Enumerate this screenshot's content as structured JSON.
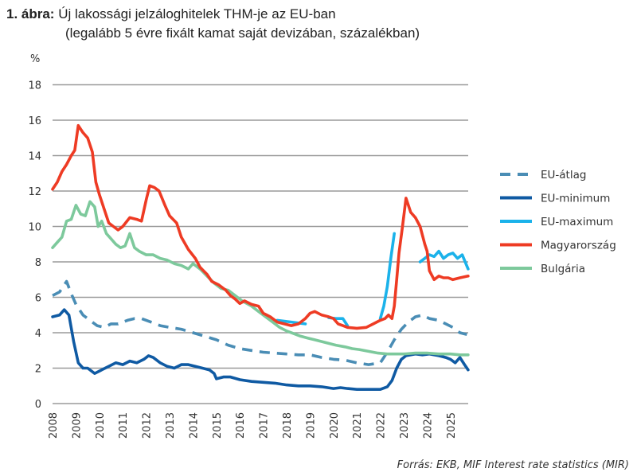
{
  "title": {
    "prefix": "1. ábra:",
    "line1": "Új lakossági jelzáloghitelek THM-je az EU-ban",
    "line2": "(legalább 5 évre fixált kamat saját devizában, százalékban)"
  },
  "source": "Forrás: EKB, MIF Interest rate statistics (MIR)",
  "chart_data": {
    "type": "line",
    "title": "Új lakossági jelzáloghitelek THM-je az EU-ban (legalább 5 évre fixált kamat saját devizában, százalékban)",
    "ylabel": "%",
    "xlabel": "",
    "ylim": [
      0,
      18
    ],
    "xlim": [
      2008,
      2025.75
    ],
    "yticks": [
      "0",
      "2",
      "4",
      "6",
      "8",
      "10",
      "12",
      "14",
      "16",
      "18"
    ],
    "xticks": [
      "2008",
      "2009",
      "2010",
      "2011",
      "2012",
      "2013",
      "2014",
      "2015",
      "2016",
      "2017",
      "2018",
      "2019",
      "2020",
      "2021",
      "2022",
      "2023",
      "2024",
      "2025"
    ],
    "grid": true,
    "legend_position": "right",
    "series": [
      {
        "name": "EU-átlag",
        "color": "#4A8DB5",
        "dash": true,
        "points": [
          [
            2008,
            6.1
          ],
          [
            2008.3,
            6.3
          ],
          [
            2008.6,
            6.9
          ],
          [
            2008.8,
            6.2
          ],
          [
            2009.0,
            5.6
          ],
          [
            2009.3,
            5.0
          ],
          [
            2009.6,
            4.7
          ],
          [
            2009.9,
            4.4
          ],
          [
            2010.2,
            4.3
          ],
          [
            2010.5,
            4.5
          ],
          [
            2010.8,
            4.5
          ],
          [
            2011.2,
            4.7
          ],
          [
            2011.5,
            4.8
          ],
          [
            2011.8,
            4.8
          ],
          [
            2012.2,
            4.6
          ],
          [
            2012.6,
            4.4
          ],
          [
            2013.0,
            4.3
          ],
          [
            2013.5,
            4.2
          ],
          [
            2014.0,
            4.0
          ],
          [
            2014.5,
            3.8
          ],
          [
            2015.0,
            3.6
          ],
          [
            2015.5,
            3.3
          ],
          [
            2016.0,
            3.1
          ],
          [
            2016.5,
            3.0
          ],
          [
            2017.0,
            2.9
          ],
          [
            2017.5,
            2.85
          ],
          [
            2018.0,
            2.8
          ],
          [
            2018.5,
            2.75
          ],
          [
            2019.0,
            2.75
          ],
          [
            2019.5,
            2.6
          ],
          [
            2020.0,
            2.5
          ],
          [
            2020.5,
            2.45
          ],
          [
            2021.0,
            2.3
          ],
          [
            2021.5,
            2.2
          ],
          [
            2022.0,
            2.3
          ],
          [
            2022.3,
            2.9
          ],
          [
            2022.6,
            3.6
          ],
          [
            2022.9,
            4.2
          ],
          [
            2023.2,
            4.6
          ],
          [
            2023.5,
            4.9
          ],
          [
            2023.8,
            5.0
          ],
          [
            2024.1,
            4.8
          ],
          [
            2024.5,
            4.7
          ],
          [
            2024.8,
            4.5
          ],
          [
            2025.1,
            4.3
          ],
          [
            2025.4,
            4.0
          ],
          [
            2025.7,
            3.9
          ]
        ]
      },
      {
        "name": "EU-minimum",
        "color": "#0F5AA3",
        "dash": false,
        "points": [
          [
            2008,
            4.9
          ],
          [
            2008.3,
            5.0
          ],
          [
            2008.5,
            5.3
          ],
          [
            2008.7,
            5.0
          ],
          [
            2008.9,
            3.5
          ],
          [
            2009.1,
            2.3
          ],
          [
            2009.3,
            2.0
          ],
          [
            2009.5,
            2.0
          ],
          [
            2009.8,
            1.7
          ],
          [
            2010.1,
            1.9
          ],
          [
            2010.4,
            2.1
          ],
          [
            2010.7,
            2.3
          ],
          [
            2011.0,
            2.2
          ],
          [
            2011.3,
            2.4
          ],
          [
            2011.6,
            2.3
          ],
          [
            2011.9,
            2.5
          ],
          [
            2012.1,
            2.7
          ],
          [
            2012.3,
            2.6
          ],
          [
            2012.6,
            2.3
          ],
          [
            2012.9,
            2.1
          ],
          [
            2013.2,
            2.0
          ],
          [
            2013.5,
            2.2
          ],
          [
            2013.8,
            2.2
          ],
          [
            2014.1,
            2.1
          ],
          [
            2014.4,
            2.0
          ],
          [
            2014.7,
            1.9
          ],
          [
            2014.9,
            1.7
          ],
          [
            2015.0,
            1.4
          ],
          [
            2015.3,
            1.5
          ],
          [
            2015.6,
            1.5
          ],
          [
            2016.0,
            1.35
          ],
          [
            2016.5,
            1.25
          ],
          [
            2017.0,
            1.2
          ],
          [
            2017.5,
            1.15
          ],
          [
            2018.0,
            1.05
          ],
          [
            2018.5,
            1.0
          ],
          [
            2019.0,
            1.0
          ],
          [
            2019.5,
            0.95
          ],
          [
            2020.0,
            0.85
          ],
          [
            2020.3,
            0.9
          ],
          [
            2020.6,
            0.85
          ],
          [
            2021.0,
            0.8
          ],
          [
            2021.5,
            0.8
          ],
          [
            2022.0,
            0.8
          ],
          [
            2022.3,
            0.95
          ],
          [
            2022.5,
            1.3
          ],
          [
            2022.7,
            2.0
          ],
          [
            2022.9,
            2.5
          ],
          [
            2023.1,
            2.7
          ],
          [
            2023.5,
            2.8
          ],
          [
            2023.8,
            2.75
          ],
          [
            2024.1,
            2.8
          ],
          [
            2024.5,
            2.7
          ],
          [
            2024.8,
            2.6
          ],
          [
            2025.0,
            2.5
          ],
          [
            2025.2,
            2.3
          ],
          [
            2025.4,
            2.6
          ],
          [
            2025.6,
            2.2
          ],
          [
            2025.75,
            1.9
          ]
        ]
      },
      {
        "name": "EU-maximum",
        "color": "#1BB2EA",
        "dash": false,
        "segments_note": "overlaps Magyarország except where shown",
        "points": [
          [
            2017.6,
            4.7
          ],
          [
            2017.9,
            4.65
          ],
          [
            2018.2,
            4.6
          ],
          [
            2018.5,
            4.55
          ],
          [
            2018.8,
            4.5
          ]
        ],
        "points2": [
          [
            2019.8,
            4.85
          ],
          [
            2020.1,
            4.8
          ],
          [
            2020.4,
            4.8
          ],
          [
            2020.6,
            4.4
          ]
        ],
        "points3": [
          [
            2022.0,
            4.8
          ],
          [
            2022.15,
            5.5
          ],
          [
            2022.3,
            6.6
          ],
          [
            2022.45,
            8.2
          ],
          [
            2022.6,
            9.6
          ]
        ],
        "points4": [
          [
            2023.7,
            8.0
          ],
          [
            2023.9,
            8.2
          ],
          [
            2024.1,
            8.4
          ],
          [
            2024.3,
            8.3
          ],
          [
            2024.5,
            8.6
          ],
          [
            2024.7,
            8.2
          ],
          [
            2024.9,
            8.4
          ],
          [
            2025.1,
            8.5
          ],
          [
            2025.3,
            8.2
          ],
          [
            2025.5,
            8.4
          ],
          [
            2025.75,
            7.6
          ]
        ]
      },
      {
        "name": "Magyarország",
        "color": "#EE3B24",
        "dash": false,
        "points": [
          [
            2008,
            12.1
          ],
          [
            2008.2,
            12.5
          ],
          [
            2008.4,
            13.1
          ],
          [
            2008.6,
            13.5
          ],
          [
            2008.8,
            14.0
          ],
          [
            2008.95,
            14.3
          ],
          [
            2009.1,
            15.7
          ],
          [
            2009.3,
            15.3
          ],
          [
            2009.5,
            15.0
          ],
          [
            2009.7,
            14.2
          ],
          [
            2009.85,
            12.5
          ],
          [
            2010.0,
            11.8
          ],
          [
            2010.2,
            11.0
          ],
          [
            2010.4,
            10.2
          ],
          [
            2010.6,
            10.0
          ],
          [
            2010.8,
            9.8
          ],
          [
            2011.0,
            10.0
          ],
          [
            2011.3,
            10.5
          ],
          [
            2011.6,
            10.4
          ],
          [
            2011.8,
            10.3
          ],
          [
            2012.0,
            11.5
          ],
          [
            2012.15,
            12.3
          ],
          [
            2012.35,
            12.2
          ],
          [
            2012.55,
            12.0
          ],
          [
            2012.8,
            11.2
          ],
          [
            2013.0,
            10.6
          ],
          [
            2013.3,
            10.2
          ],
          [
            2013.5,
            9.4
          ],
          [
            2013.8,
            8.7
          ],
          [
            2014.1,
            8.2
          ],
          [
            2014.3,
            7.7
          ],
          [
            2014.6,
            7.3
          ],
          [
            2014.8,
            6.9
          ],
          [
            2015.1,
            6.7
          ],
          [
            2015.4,
            6.4
          ],
          [
            2015.6,
            6.1
          ],
          [
            2015.8,
            5.9
          ],
          [
            2016.0,
            5.65
          ],
          [
            2016.2,
            5.8
          ],
          [
            2016.5,
            5.6
          ],
          [
            2016.8,
            5.5
          ],
          [
            2017.0,
            5.1
          ],
          [
            2017.3,
            4.9
          ],
          [
            2017.6,
            4.6
          ],
          [
            2017.9,
            4.5
          ],
          [
            2018.2,
            4.4
          ],
          [
            2018.5,
            4.5
          ],
          [
            2018.8,
            4.8
          ],
          [
            2019.0,
            5.1
          ],
          [
            2019.2,
            5.2
          ],
          [
            2019.5,
            5.0
          ],
          [
            2019.8,
            4.9
          ],
          [
            2020.0,
            4.8
          ],
          [
            2020.2,
            4.5
          ],
          [
            2020.4,
            4.4
          ],
          [
            2020.6,
            4.3
          ],
          [
            2021.0,
            4.25
          ],
          [
            2021.4,
            4.3
          ],
          [
            2021.7,
            4.5
          ],
          [
            2022.0,
            4.7
          ],
          [
            2022.2,
            4.8
          ],
          [
            2022.35,
            5.0
          ],
          [
            2022.5,
            4.8
          ],
          [
            2022.6,
            5.5
          ],
          [
            2022.7,
            7.0
          ],
          [
            2022.8,
            8.5
          ],
          [
            2022.95,
            10.0
          ],
          [
            2023.1,
            11.6
          ],
          [
            2023.3,
            10.8
          ],
          [
            2023.5,
            10.5
          ],
          [
            2023.7,
            10.0
          ],
          [
            2023.9,
            9.0
          ],
          [
            2024.0,
            8.6
          ],
          [
            2024.1,
            7.5
          ],
          [
            2024.3,
            7.0
          ],
          [
            2024.5,
            7.2
          ],
          [
            2024.7,
            7.1
          ],
          [
            2024.9,
            7.1
          ],
          [
            2025.1,
            7.0
          ],
          [
            2025.4,
            7.1
          ],
          [
            2025.75,
            7.2
          ]
        ]
      },
      {
        "name": "Bulgária",
        "color": "#7DC99C",
        "dash": false,
        "points": [
          [
            2008,
            8.8
          ],
          [
            2008.2,
            9.1
          ],
          [
            2008.4,
            9.4
          ],
          [
            2008.6,
            10.3
          ],
          [
            2008.8,
            10.4
          ],
          [
            2009.0,
            11.2
          ],
          [
            2009.2,
            10.7
          ],
          [
            2009.4,
            10.6
          ],
          [
            2009.6,
            11.4
          ],
          [
            2009.8,
            11.1
          ],
          [
            2009.95,
            10.0
          ],
          [
            2010.1,
            10.3
          ],
          [
            2010.3,
            9.6
          ],
          [
            2010.5,
            9.3
          ],
          [
            2010.7,
            9.0
          ],
          [
            2010.9,
            8.8
          ],
          [
            2011.1,
            8.9
          ],
          [
            2011.3,
            9.6
          ],
          [
            2011.5,
            8.8
          ],
          [
            2011.7,
            8.6
          ],
          [
            2012.0,
            8.4
          ],
          [
            2012.3,
            8.4
          ],
          [
            2012.6,
            8.2
          ],
          [
            2012.9,
            8.1
          ],
          [
            2013.2,
            7.9
          ],
          [
            2013.5,
            7.8
          ],
          [
            2013.8,
            7.6
          ],
          [
            2014.0,
            7.9
          ],
          [
            2014.3,
            7.6
          ],
          [
            2014.6,
            7.2
          ],
          [
            2014.9,
            6.8
          ],
          [
            2015.2,
            6.5
          ],
          [
            2015.5,
            6.4
          ],
          [
            2015.8,
            6.1
          ],
          [
            2016.1,
            5.8
          ],
          [
            2016.5,
            5.5
          ],
          [
            2016.8,
            5.2
          ],
          [
            2017.1,
            4.9
          ],
          [
            2017.4,
            4.6
          ],
          [
            2017.7,
            4.3
          ],
          [
            2018.0,
            4.1
          ],
          [
            2018.3,
            3.95
          ],
          [
            2018.6,
            3.8
          ],
          [
            2018.9,
            3.7
          ],
          [
            2019.2,
            3.6
          ],
          [
            2019.5,
            3.5
          ],
          [
            2019.8,
            3.4
          ],
          [
            2020.1,
            3.3
          ],
          [
            2020.5,
            3.2
          ],
          [
            2020.8,
            3.1
          ],
          [
            2021.1,
            3.05
          ],
          [
            2021.5,
            2.95
          ],
          [
            2021.9,
            2.85
          ],
          [
            2022.3,
            2.8
          ],
          [
            2022.7,
            2.8
          ],
          [
            2023.0,
            2.8
          ],
          [
            2023.5,
            2.85
          ],
          [
            2024.0,
            2.85
          ],
          [
            2024.5,
            2.8
          ],
          [
            2025.0,
            2.8
          ],
          [
            2025.4,
            2.75
          ],
          [
            2025.75,
            2.75
          ]
        ]
      }
    ]
  }
}
